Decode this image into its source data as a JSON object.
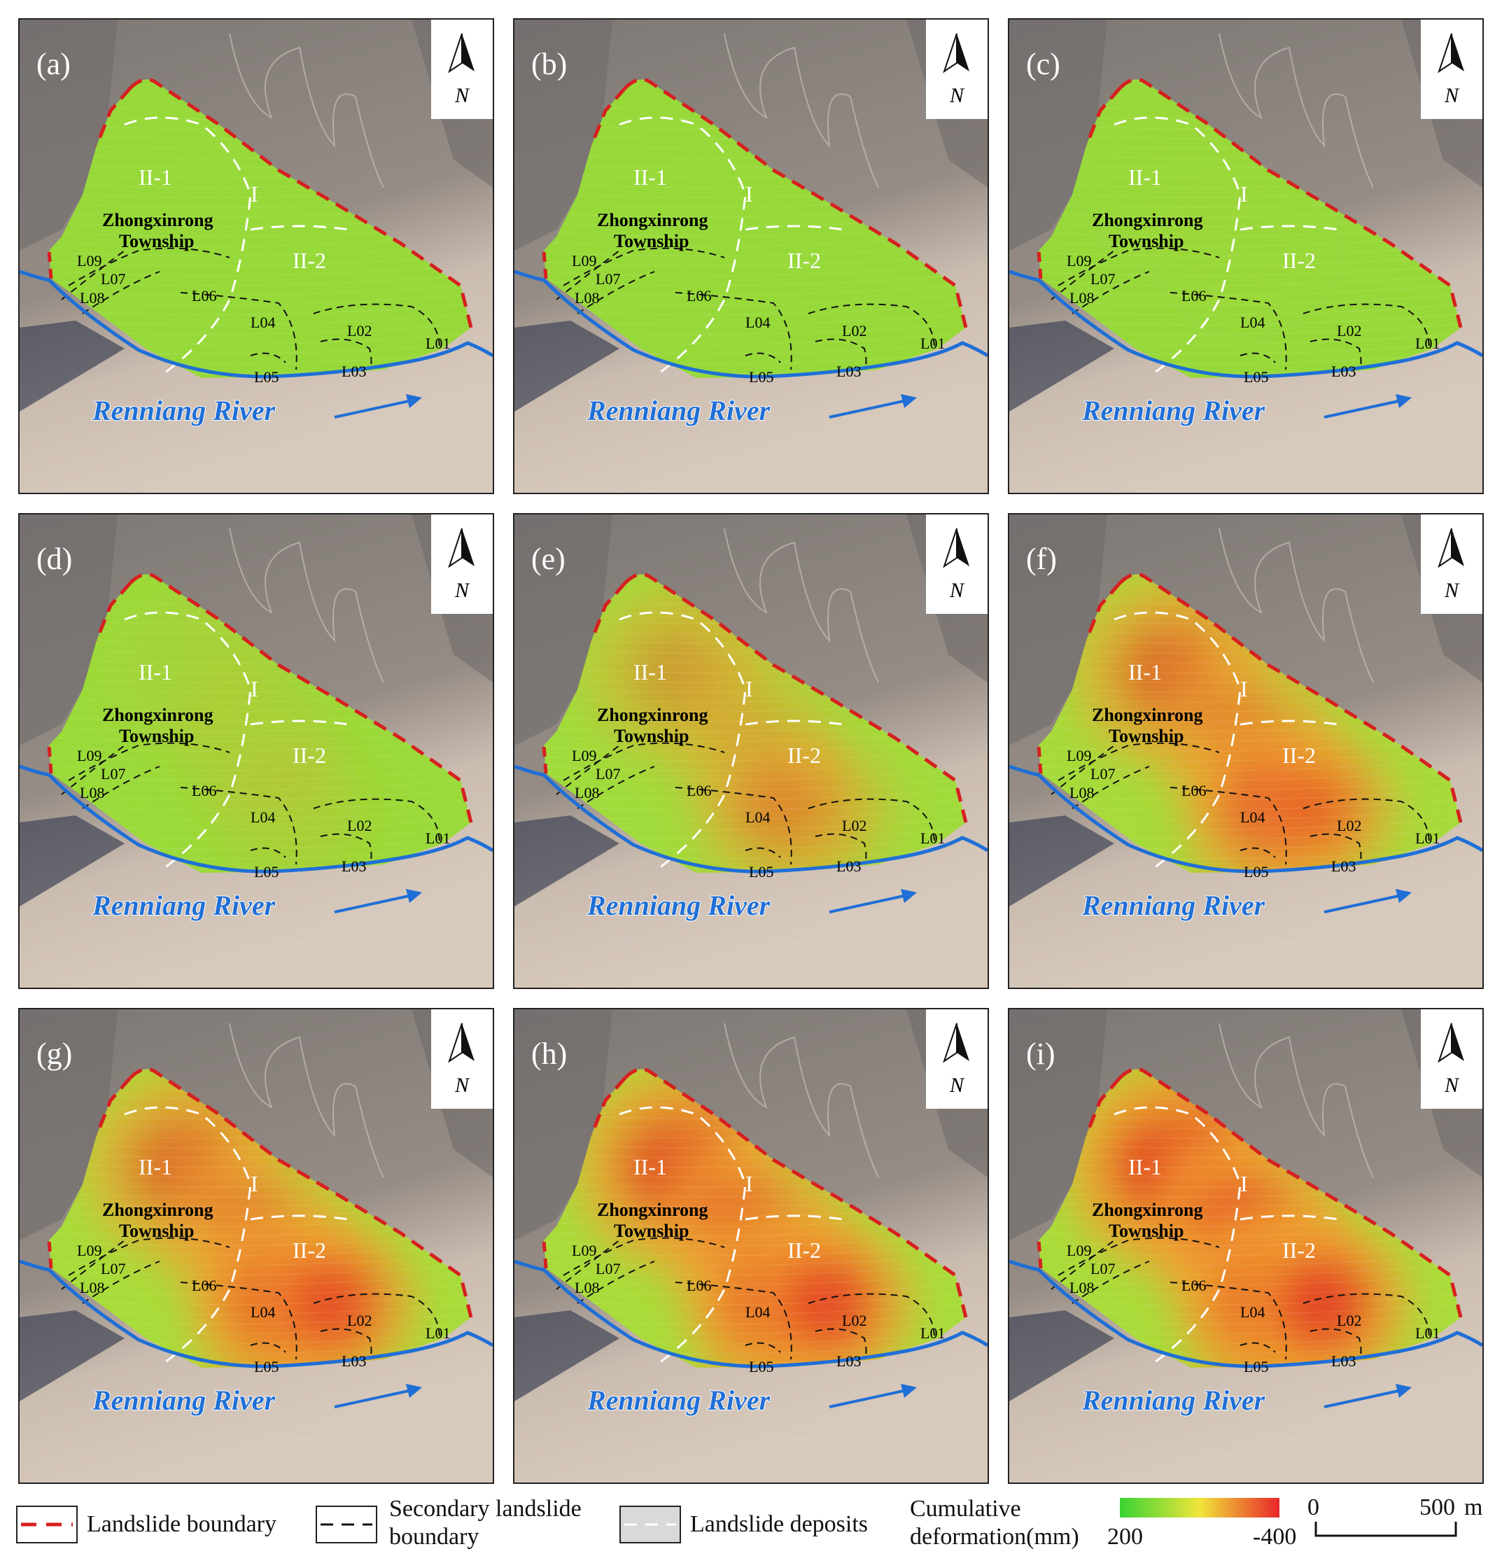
{
  "panels": [
    {
      "label": "(a)",
      "intensity": [
        0.0,
        0.0,
        0.0,
        0.0,
        0.0
      ]
    },
    {
      "label": "(b)",
      "intensity": [
        0.0,
        0.0,
        0.0,
        0.0,
        0.0
      ]
    },
    {
      "label": "(c)",
      "intensity": [
        0.02,
        0.02,
        0.0,
        0.0,
        0.0
      ]
    },
    {
      "label": "(d)",
      "intensity": [
        0.1,
        0.15,
        0.15,
        0.05,
        0.05
      ]
    },
    {
      "label": "(e)",
      "intensity": [
        0.45,
        0.35,
        0.55,
        0.3,
        0.15
      ]
    },
    {
      "label": "(f)",
      "intensity": [
        0.7,
        0.55,
        0.85,
        0.55,
        0.25
      ]
    },
    {
      "label": "(g)",
      "intensity": [
        0.7,
        0.6,
        0.95,
        0.8,
        0.3
      ]
    },
    {
      "label": "(h)",
      "intensity": [
        0.85,
        0.7,
        0.95,
        0.85,
        0.35
      ]
    },
    {
      "label": "(i)",
      "intensity": [
        0.95,
        0.85,
        1.0,
        0.9,
        0.45
      ]
    }
  ],
  "map_labels": {
    "north": "N",
    "zone_I": "I",
    "zone_II1": "II-1",
    "zone_II2": "II-2",
    "township_line1": "Zhongxinrong",
    "township_line2": "Township",
    "L01": "L01",
    "L02": "L02",
    "L03": "L03",
    "L04": "L04",
    "L05": "L05",
    "L06": "L06",
    "L07": "L07",
    "L08": "L08",
    "L09": "L09",
    "river": "Renniang River"
  },
  "legend": {
    "landslide_boundary": "Landslide boundary",
    "secondary_line1": "Secondary landslide",
    "secondary_line2": "boundary",
    "deposits": "Landslide deposits",
    "cumulative_line1": "Cumulative",
    "cumulative_line2": "deformation(mm)",
    "colorbar_min": "200",
    "colorbar_max": "-400",
    "scale_zero": "0",
    "scale_end": "500",
    "scale_unit": "m"
  },
  "colors": {
    "landslide_boundary": "#d62020",
    "river": "#1f6fd6",
    "river_label": "#1f6fd6",
    "colorbar_low": "#39d433",
    "colorbar_mid": "#f0e53a",
    "colorbar_high": "#e8262a"
  }
}
